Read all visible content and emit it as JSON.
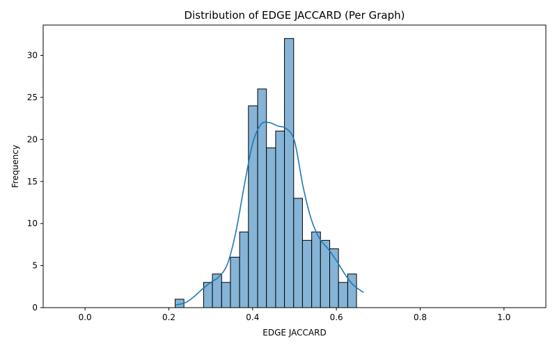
{
  "chart_data": {
    "type": "bar",
    "title": "Distribution of EDGE JACCARD (Per Graph)",
    "xlabel": "EDGE JACCARD",
    "ylabel": "Frequency",
    "xlim": [
      -0.1,
      1.1
    ],
    "ylim": [
      0,
      33.6
    ],
    "xticks": [
      "0.0",
      "0.2",
      "0.4",
      "0.6",
      "0.8",
      "1.0"
    ],
    "yticks": [
      "0",
      "5",
      "10",
      "15",
      "20",
      "25",
      "30"
    ],
    "bins": [
      {
        "x0": 0.215,
        "x1": 0.236,
        "count": 1
      },
      {
        "x0": 0.236,
        "x1": 0.257,
        "count": 0
      },
      {
        "x0": 0.257,
        "x1": 0.278,
        "count": 0
      },
      {
        "x0": 0.283,
        "x1": 0.304,
        "count": 3
      },
      {
        "x0": 0.304,
        "x1": 0.326,
        "count": 4
      },
      {
        "x0": 0.326,
        "x1": 0.347,
        "count": 3
      },
      {
        "x0": 0.347,
        "x1": 0.369,
        "count": 6
      },
      {
        "x0": 0.369,
        "x1": 0.39,
        "count": 9
      },
      {
        "x0": 0.39,
        "x1": 0.412,
        "count": 24
      },
      {
        "x0": 0.412,
        "x1": 0.433,
        "count": 26
      },
      {
        "x0": 0.433,
        "x1": 0.455,
        "count": 19
      },
      {
        "x0": 0.455,
        "x1": 0.476,
        "count": 21
      },
      {
        "x0": 0.476,
        "x1": 0.498,
        "count": 32
      },
      {
        "x0": 0.498,
        "x1": 0.519,
        "count": 13
      },
      {
        "x0": 0.519,
        "x1": 0.541,
        "count": 8
      },
      {
        "x0": 0.541,
        "x1": 0.562,
        "count": 9
      },
      {
        "x0": 0.562,
        "x1": 0.584,
        "count": 8
      },
      {
        "x0": 0.584,
        "x1": 0.605,
        "count": 7
      },
      {
        "x0": 0.605,
        "x1": 0.627,
        "count": 3
      },
      {
        "x0": 0.627,
        "x1": 0.648,
        "count": 4
      }
    ],
    "kde": {
      "x": [
        0.215,
        0.24,
        0.26,
        0.28,
        0.3,
        0.32,
        0.34,
        0.36,
        0.38,
        0.4,
        0.42,
        0.44,
        0.46,
        0.48,
        0.5,
        0.52,
        0.54,
        0.56,
        0.58,
        0.6,
        0.62,
        0.64,
        0.665
      ],
      "y": [
        0.3,
        0.6,
        1.3,
        2.2,
        3.0,
        3.7,
        5.2,
        9.0,
        14.5,
        19.5,
        21.8,
        22.0,
        21.6,
        21.3,
        19.8,
        14.5,
        10.5,
        8.2,
        7.0,
        5.6,
        4.0,
        2.7,
        1.8
      ]
    },
    "colors": {
      "bar_fill": "#85b4d6",
      "bar_edge": "#000000",
      "kde_line": "#1f77b4"
    },
    "grid": false
  }
}
